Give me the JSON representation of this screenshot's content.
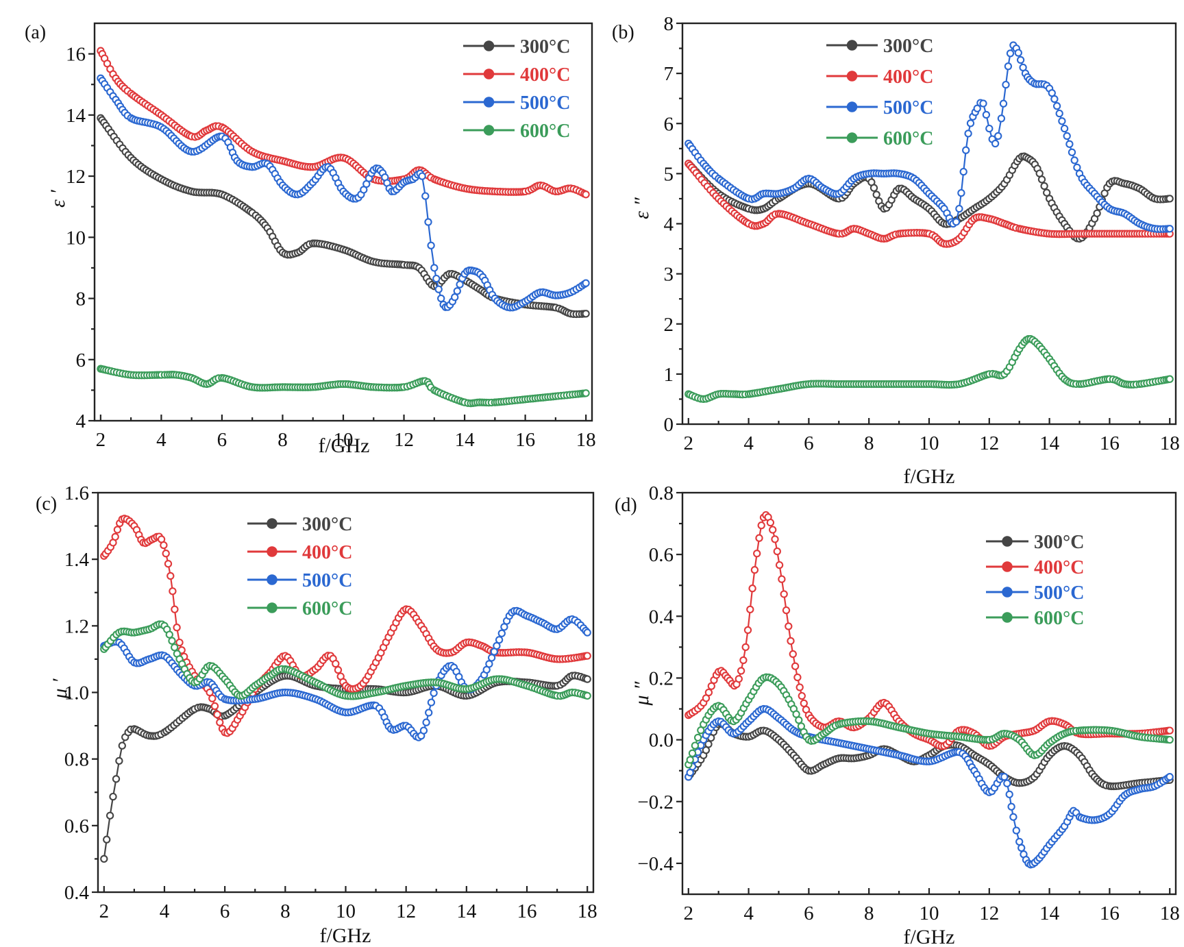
{
  "colors": {
    "300°C": "#454545",
    "400°C": "#e0393b",
    "500°C": "#2b68d1",
    "600°C": "#3b9c5a"
  },
  "chart_data": [
    {
      "panel": "(a)",
      "type": "line",
      "ylabel": "ε ′",
      "xlabel": "f/GHz",
      "xlim": [
        1.8,
        18.2
      ],
      "ylim": [
        4,
        17
      ],
      "xticks": [
        2,
        4,
        6,
        8,
        10,
        12,
        14,
        16,
        18
      ],
      "yticks": [
        4,
        6,
        8,
        10,
        12,
        14,
        16
      ],
      "legend_position": "top-right",
      "series": [
        {
          "name": "300°C",
          "x": [
            2,
            3,
            4,
            5,
            6,
            7,
            7.5,
            8,
            8.5,
            9,
            10,
            11,
            12,
            12.5,
            13,
            13.5,
            14,
            14.5,
            15,
            16,
            17,
            17.5,
            18
          ],
          "y": [
            13.9,
            12.6,
            11.9,
            11.5,
            11.4,
            10.8,
            10.3,
            9.5,
            9.5,
            9.8,
            9.6,
            9.2,
            9.1,
            9.0,
            8.4,
            8.8,
            8.6,
            8.3,
            8.0,
            7.8,
            7.7,
            7.5,
            7.5
          ]
        },
        {
          "name": "400°C",
          "x": [
            2,
            2.5,
            3,
            4,
            5,
            5.5,
            6,
            7,
            8,
            9,
            10,
            11,
            12,
            12.5,
            13,
            14,
            15,
            16,
            16.5,
            17,
            17.5,
            18
          ],
          "y": [
            16.1,
            15.2,
            14.7,
            14.0,
            13.3,
            13.5,
            13.6,
            12.8,
            12.5,
            12.3,
            12.6,
            11.9,
            11.9,
            12.2,
            11.9,
            11.6,
            11.5,
            11.5,
            11.7,
            11.5,
            11.6,
            11.4
          ]
        },
        {
          "name": "500°C",
          "x": [
            2,
            2.5,
            3,
            4,
            5,
            6,
            6.5,
            7,
            7.5,
            8,
            8.5,
            9,
            9.5,
            10,
            10.5,
            11,
            11.3,
            11.6,
            12,
            12.3,
            12.6,
            12.8,
            13,
            13.3,
            13.6,
            14,
            14.3,
            14.6,
            15,
            15.5,
            16,
            16.5,
            17,
            17.5,
            18
          ],
          "y": [
            15.2,
            14.5,
            13.9,
            13.6,
            12.8,
            13.3,
            12.5,
            12.3,
            12.4,
            11.7,
            11.4,
            11.8,
            12.3,
            11.5,
            11.3,
            12.2,
            12.1,
            11.5,
            11.8,
            11.9,
            12.0,
            10.5,
            9.0,
            7.8,
            7.9,
            8.8,
            8.9,
            8.7,
            8.0,
            7.7,
            7.9,
            8.2,
            8.1,
            8.2,
            8.5
          ]
        },
        {
          "name": "600°C",
          "x": [
            2,
            3,
            4,
            4.5,
            5,
            5.5,
            6,
            7,
            8,
            9,
            10,
            11,
            12,
            12.7,
            13,
            14,
            14.5,
            15,
            16,
            17,
            18
          ],
          "y": [
            5.7,
            5.5,
            5.5,
            5.5,
            5.4,
            5.2,
            5.4,
            5.1,
            5.1,
            5.1,
            5.2,
            5.1,
            5.1,
            5.3,
            5.0,
            4.6,
            4.6,
            4.6,
            4.7,
            4.8,
            4.9
          ]
        }
      ]
    },
    {
      "panel": "(b)",
      "type": "line",
      "ylabel": "ε ″",
      "xlabel": "f/GHz",
      "xlim": [
        1.8,
        18.2
      ],
      "ylim": [
        0,
        8
      ],
      "xticks": [
        2,
        4,
        6,
        8,
        10,
        12,
        14,
        16,
        18
      ],
      "yticks": [
        0,
        1,
        2,
        3,
        4,
        5,
        6,
        7,
        8
      ],
      "legend_position": "top-left",
      "series": [
        {
          "name": "300°C",
          "x": [
            2,
            3,
            4,
            4.5,
            5,
            6,
            7,
            7.5,
            8,
            8.5,
            9,
            9.5,
            10,
            10.5,
            11,
            11.5,
            12,
            12.5,
            13,
            13.3,
            13.6,
            14,
            14.5,
            15,
            15.5,
            16,
            16.5,
            17,
            17.5,
            18
          ],
          "y": [
            5.2,
            4.6,
            4.3,
            4.3,
            4.5,
            4.8,
            4.5,
            4.8,
            4.9,
            4.3,
            4.7,
            4.5,
            4.3,
            4.0,
            4.1,
            4.3,
            4.5,
            4.8,
            5.3,
            5.3,
            5.1,
            4.5,
            4.0,
            3.7,
            4.1,
            4.8,
            4.8,
            4.7,
            4.5,
            4.5
          ]
        },
        {
          "name": "400°C",
          "x": [
            2,
            3,
            4,
            4.5,
            5,
            6,
            7,
            7.5,
            8,
            8.5,
            9,
            10,
            10.5,
            11,
            11.5,
            12,
            12.5,
            13,
            14,
            15,
            16,
            17,
            18
          ],
          "y": [
            5.2,
            4.5,
            4.0,
            4.0,
            4.2,
            4.0,
            3.8,
            3.9,
            3.8,
            3.7,
            3.8,
            3.8,
            3.6,
            3.7,
            4.1,
            4.1,
            4.0,
            3.9,
            3.8,
            3.8,
            3.8,
            3.8,
            3.8
          ]
        },
        {
          "name": "500°C",
          "x": [
            2,
            2.5,
            3,
            4,
            4.5,
            5,
            5.5,
            6,
            6.5,
            7,
            7.5,
            8,
            8.5,
            9,
            9.5,
            10,
            10.5,
            10.8,
            11,
            11.3,
            11.6,
            11.8,
            12,
            12.2,
            12.4,
            12.7,
            12.9,
            13.2,
            13.5,
            14,
            14.5,
            15,
            15.5,
            16,
            16.5,
            17,
            17.5,
            18
          ],
          "y": [
            5.6,
            5.2,
            4.9,
            4.5,
            4.6,
            4.6,
            4.7,
            4.9,
            4.7,
            4.6,
            4.9,
            5.0,
            5.0,
            5.0,
            4.9,
            4.6,
            4.3,
            4.0,
            4.3,
            5.8,
            6.3,
            6.4,
            5.9,
            5.6,
            6.1,
            7.4,
            7.5,
            7.0,
            6.8,
            6.7,
            5.9,
            5.0,
            4.6,
            4.3,
            4.2,
            4.0,
            3.9,
            3.9
          ]
        },
        {
          "name": "600°C",
          "x": [
            2,
            2.5,
            3,
            3.5,
            4,
            5,
            6,
            7,
            8,
            9,
            10,
            11,
            12,
            12.5,
            13,
            13.3,
            13.6,
            14,
            14.5,
            15,
            16,
            16.5,
            17,
            18
          ],
          "y": [
            0.6,
            0.5,
            0.6,
            0.6,
            0.6,
            0.7,
            0.8,
            0.8,
            0.8,
            0.8,
            0.8,
            0.8,
            1.0,
            1.0,
            1.5,
            1.7,
            1.6,
            1.3,
            0.9,
            0.8,
            0.9,
            0.8,
            0.8,
            0.9
          ]
        }
      ]
    },
    {
      "panel": "(c)",
      "type": "line",
      "ylabel": "μ ′",
      "xlabel": "f/GHz",
      "xlim": [
        1.8,
        18.2
      ],
      "ylim": [
        0.4,
        1.6
      ],
      "xticks": [
        2,
        4,
        6,
        8,
        10,
        12,
        14,
        16,
        18
      ],
      "yticks": [
        0.4,
        0.6,
        0.8,
        1.0,
        1.2,
        1.4,
        1.6
      ],
      "ytick_labels": [
        "0.4",
        "0.6",
        "0.8",
        "1.0",
        "1.2",
        "1.4",
        "1.6"
      ],
      "legend_position": "top-center",
      "series": [
        {
          "name": "300°C",
          "x": [
            2,
            2.2,
            2.4,
            2.6,
            2.8,
            3,
            3.5,
            4,
            5,
            5.5,
            6,
            7,
            8,
            9,
            10,
            11,
            12,
            13,
            14,
            15,
            16,
            17,
            17.5,
            18
          ],
          "y": [
            0.5,
            0.63,
            0.74,
            0.84,
            0.88,
            0.89,
            0.87,
            0.88,
            0.95,
            0.95,
            0.93,
            1.0,
            1.05,
            1.02,
            1.01,
            1.01,
            1.0,
            1.02,
            0.99,
            1.03,
            1.03,
            1.02,
            1.05,
            1.04
          ]
        },
        {
          "name": "400°C",
          "x": [
            2,
            2.3,
            2.6,
            3,
            3.3,
            3.6,
            3.9,
            4.2,
            4.5,
            5,
            5.5,
            6,
            6.5,
            7,
            7.5,
            8,
            8.5,
            9,
            9.5,
            10,
            10.5,
            11,
            11.5,
            12,
            12.5,
            13,
            13.5,
            14,
            14.5,
            15,
            16,
            17,
            18
          ],
          "y": [
            1.41,
            1.45,
            1.52,
            1.5,
            1.45,
            1.46,
            1.46,
            1.35,
            1.15,
            1.05,
            1.0,
            0.88,
            0.93,
            1.01,
            1.06,
            1.11,
            1.05,
            1.07,
            1.11,
            1.02,
            1.02,
            1.09,
            1.18,
            1.25,
            1.2,
            1.13,
            1.12,
            1.15,
            1.14,
            1.12,
            1.12,
            1.1,
            1.11
          ]
        },
        {
          "name": "500°C",
          "x": [
            2,
            2.5,
            3,
            3.5,
            4,
            4.5,
            5,
            5.5,
            6,
            7,
            8,
            9,
            10,
            11,
            11.5,
            12,
            12.5,
            13,
            13.5,
            14,
            14.5,
            15,
            15.5,
            16,
            16.5,
            17,
            17.5,
            18
          ],
          "y": [
            1.14,
            1.15,
            1.09,
            1.1,
            1.11,
            1.06,
            1.02,
            1.03,
            0.98,
            0.98,
            1.0,
            0.98,
            0.94,
            0.96,
            0.89,
            0.9,
            0.87,
            1.02,
            1.08,
            1.01,
            1.04,
            1.14,
            1.24,
            1.23,
            1.21,
            1.19,
            1.22,
            1.18
          ]
        },
        {
          "name": "600°C",
          "x": [
            2,
            2.5,
            3,
            3.5,
            4,
            4.5,
            5,
            5.5,
            6,
            6.5,
            7,
            7.5,
            8,
            9,
            10,
            11,
            12,
            13,
            14,
            15,
            16,
            17,
            17.5,
            18
          ],
          "y": [
            1.13,
            1.18,
            1.18,
            1.19,
            1.2,
            1.1,
            1.03,
            1.08,
            1.04,
            0.99,
            1.02,
            1.05,
            1.07,
            1.03,
            0.99,
            1.0,
            1.02,
            1.03,
            1.01,
            1.04,
            1.02,
            0.99,
            1.0,
            0.99
          ]
        }
      ]
    },
    {
      "panel": "(d)",
      "type": "line",
      "ylabel": "μ ″",
      "xlabel": "f/GHz",
      "xlim": [
        1.8,
        18.2
      ],
      "ylim": [
        -0.5,
        0.8
      ],
      "xticks": [
        2,
        4,
        6,
        8,
        10,
        12,
        14,
        16,
        18
      ],
      "yticks": [
        -0.4,
        -0.2,
        0.0,
        0.2,
        0.4,
        0.6,
        0.8
      ],
      "ytick_labels": [
        "−0.4",
        "−0.2",
        "0.0",
        "0.2",
        "0.4",
        "0.6",
        "0.8"
      ],
      "legend_position": "top-right",
      "series": [
        {
          "name": "300°C",
          "x": [
            2,
            2.5,
            3,
            3.5,
            4,
            4.5,
            5,
            5.5,
            6,
            6.5,
            7,
            7.5,
            8,
            8.5,
            9,
            9.5,
            10,
            10.5,
            11,
            11.5,
            12,
            12.5,
            13,
            13.5,
            14,
            14.5,
            15,
            15.5,
            16,
            17,
            18
          ],
          "y": [
            -0.12,
            -0.05,
            0.05,
            0.02,
            0.01,
            0.03,
            0.0,
            -0.05,
            -0.1,
            -0.08,
            -0.06,
            -0.06,
            -0.05,
            -0.03,
            -0.05,
            -0.07,
            -0.05,
            -0.02,
            -0.02,
            -0.05,
            -0.08,
            -0.12,
            -0.14,
            -0.12,
            -0.05,
            -0.02,
            -0.05,
            -0.12,
            -0.15,
            -0.14,
            -0.13
          ]
        },
        {
          "name": "400°C",
          "x": [
            2,
            2.5,
            3,
            3.3,
            3.6,
            3.9,
            4.2,
            4.5,
            4.8,
            5.1,
            5.4,
            5.7,
            6,
            6.5,
            7,
            7.5,
            8,
            8.5,
            9,
            9.5,
            10,
            10.5,
            11,
            11.5,
            12,
            12.5,
            13,
            13.5,
            14,
            14.5,
            15,
            16,
            17,
            18
          ],
          "y": [
            0.08,
            0.12,
            0.22,
            0.2,
            0.18,
            0.3,
            0.55,
            0.72,
            0.68,
            0.52,
            0.32,
            0.17,
            0.08,
            0.04,
            0.06,
            0.04,
            0.07,
            0.12,
            0.06,
            0.02,
            0.0,
            -0.02,
            0.03,
            0.02,
            -0.02,
            0.01,
            0.02,
            0.03,
            0.06,
            0.05,
            0.02,
            0.02,
            0.02,
            0.03
          ]
        },
        {
          "name": "500°C",
          "x": [
            2,
            2.5,
            3,
            3.5,
            4,
            4.5,
            5,
            5.5,
            6,
            7,
            8,
            9,
            10,
            11,
            11.5,
            12,
            12.5,
            12.8,
            13,
            13.3,
            13.6,
            14,
            14.5,
            14.8,
            15,
            15.5,
            16,
            16.5,
            17,
            17.5,
            18
          ],
          "y": [
            -0.12,
            0.0,
            0.06,
            0.02,
            0.06,
            0.1,
            0.07,
            0.03,
            0.01,
            -0.01,
            -0.03,
            -0.05,
            -0.07,
            -0.04,
            -0.1,
            -0.17,
            -0.12,
            -0.25,
            -0.33,
            -0.4,
            -0.39,
            -0.34,
            -0.28,
            -0.23,
            -0.25,
            -0.26,
            -0.24,
            -0.18,
            -0.16,
            -0.15,
            -0.12
          ]
        },
        {
          "name": "600°C",
          "x": [
            2,
            2.5,
            3,
            3.5,
            4,
            4.5,
            5,
            5.5,
            6,
            6.5,
            7,
            8,
            9,
            10,
            11,
            12,
            12.5,
            13,
            13.5,
            14,
            14.5,
            15,
            16,
            17,
            18
          ],
          "y": [
            -0.08,
            0.05,
            0.11,
            0.06,
            0.13,
            0.2,
            0.18,
            0.1,
            0.0,
            0.02,
            0.05,
            0.06,
            0.04,
            0.02,
            0.01,
            0.0,
            0.02,
            0.0,
            -0.05,
            -0.01,
            0.02,
            0.03,
            0.03,
            0.01,
            0.0
          ]
        }
      ]
    }
  ]
}
